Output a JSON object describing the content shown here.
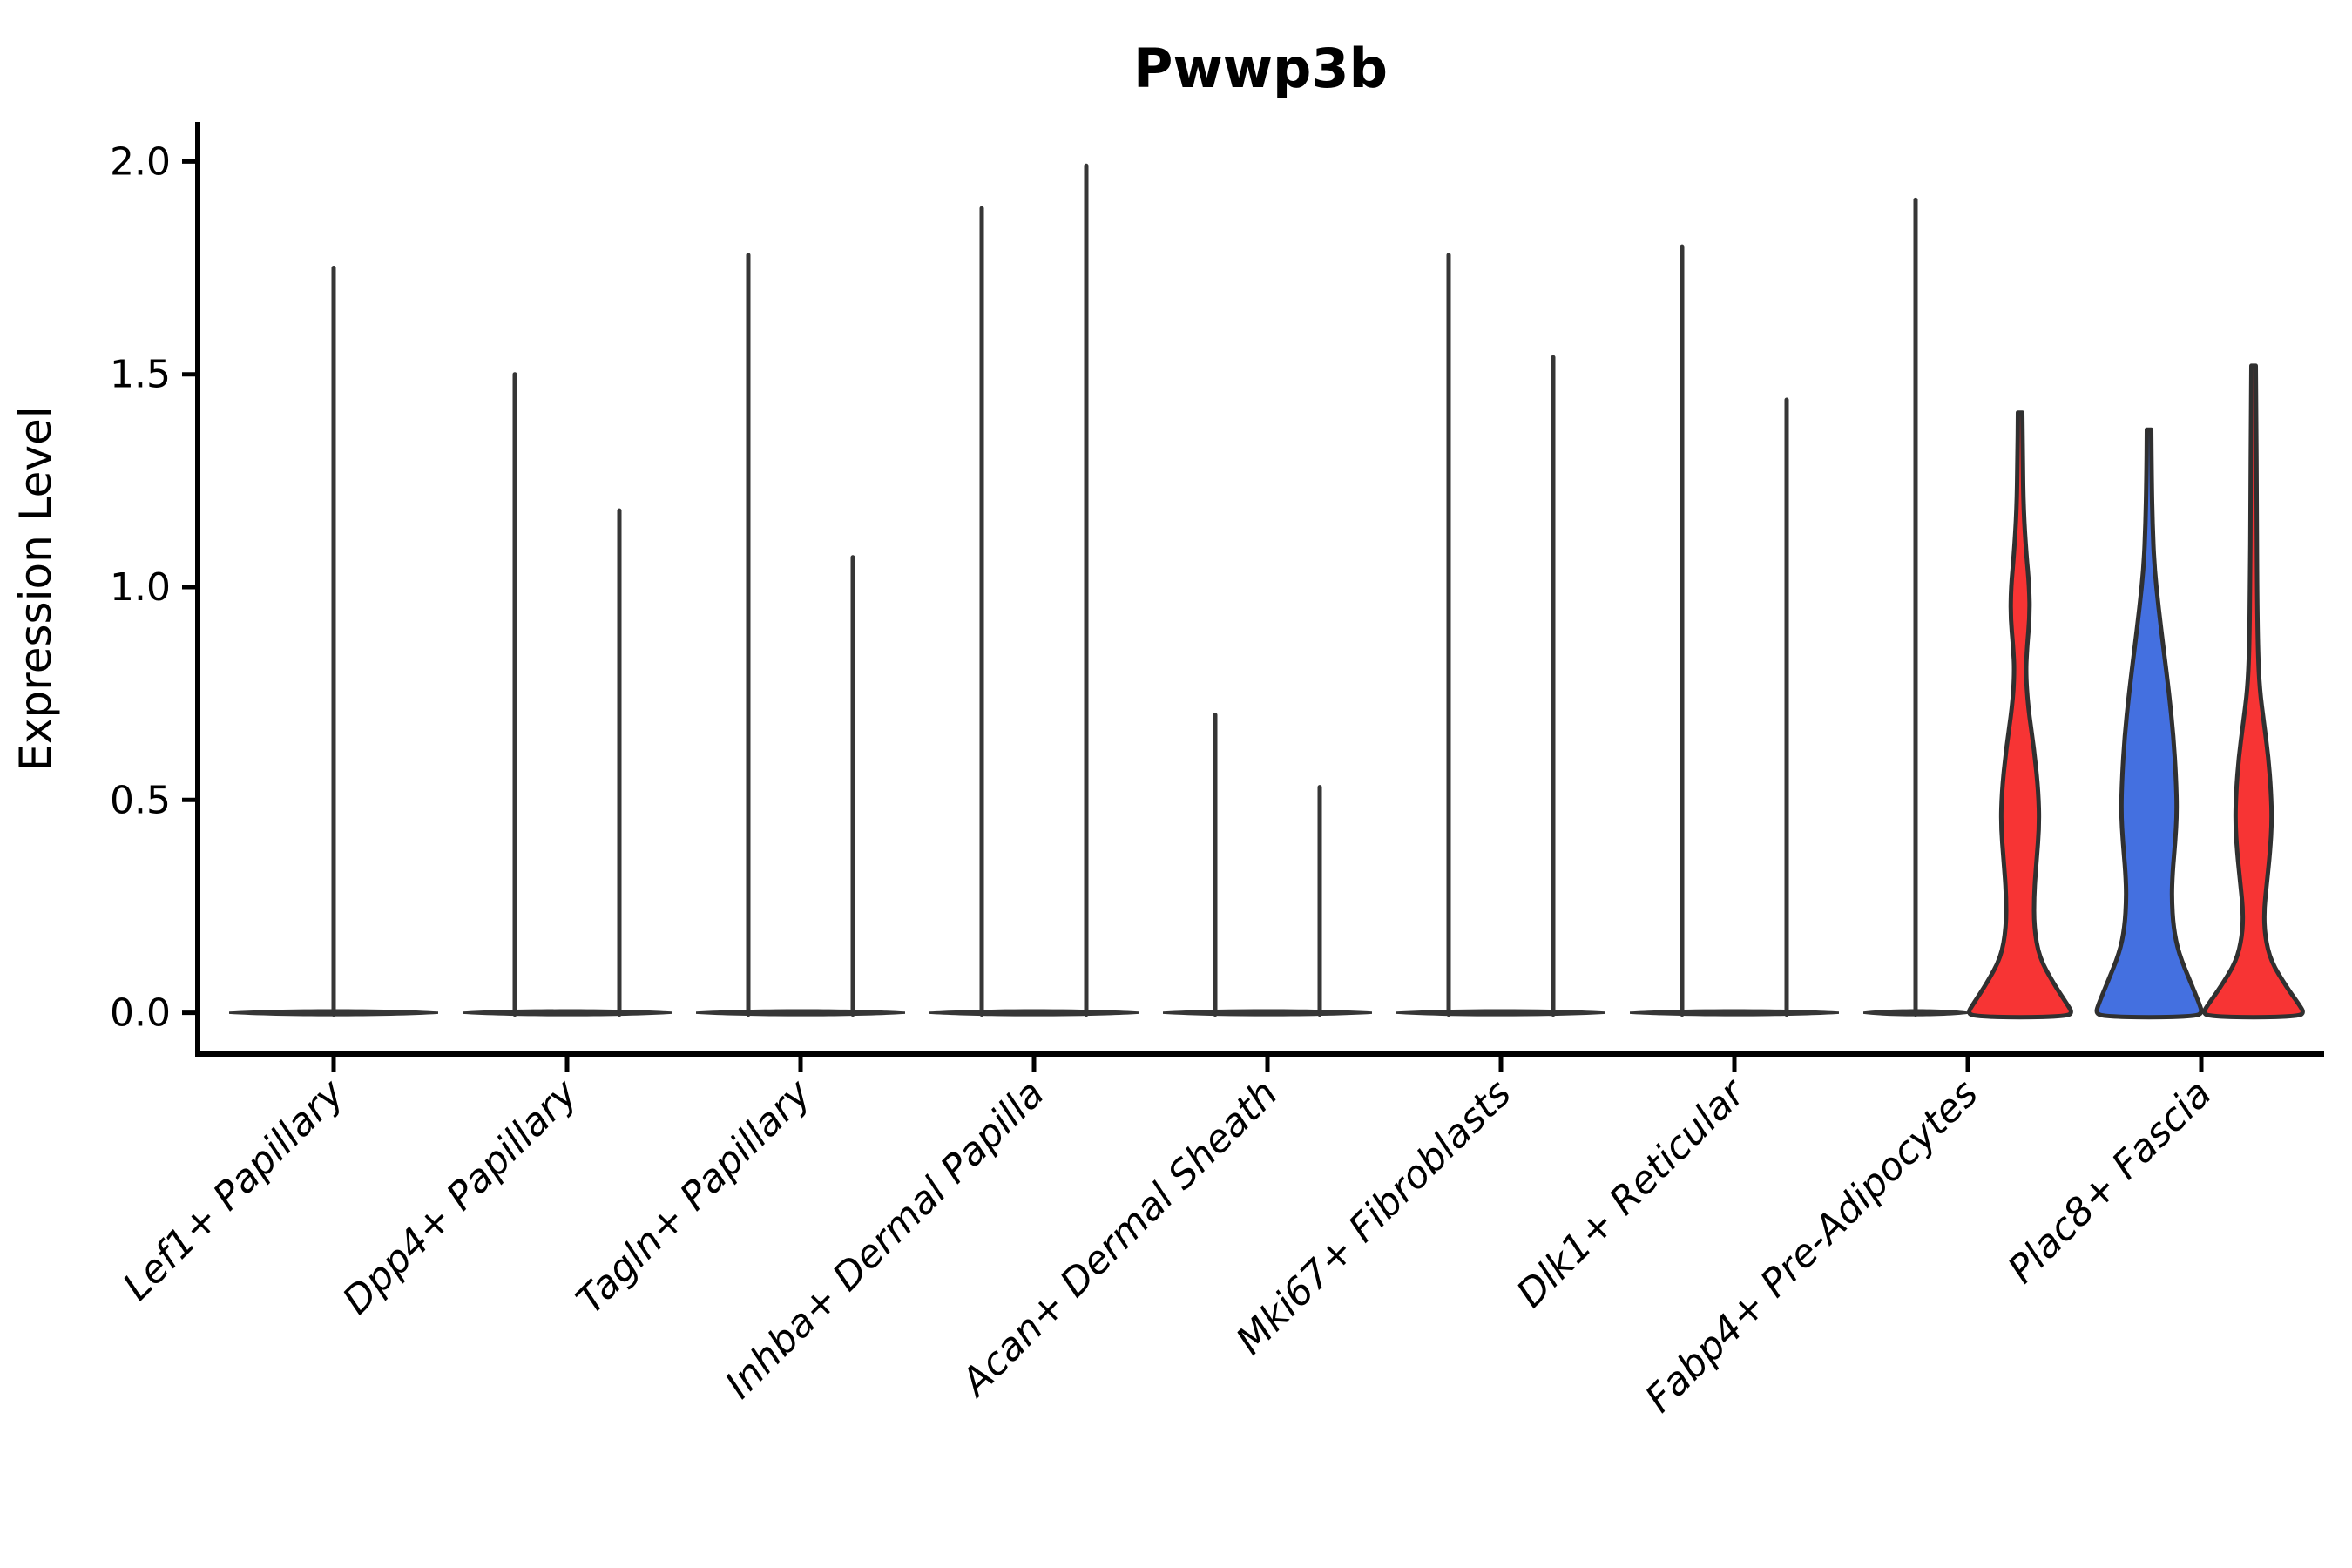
{
  "title": "Pwwp3b",
  "axes": {
    "ylabel": "Expression Level",
    "ytick_labels": [
      "0.0",
      "0.5",
      "1.0",
      "1.5",
      "2.0"
    ]
  },
  "colors": {
    "red": "#f73434",
    "blue": "#4470e0",
    "violin_outline": "#303030",
    "spike": "#363636",
    "axis": "#000000"
  },
  "chart_data": {
    "type": "violin",
    "title": "Pwwp3b",
    "xlabel": "",
    "ylabel": "Expression Level",
    "ylim": [
      -0.1,
      2.09
    ],
    "yticks": [
      0.0,
      0.5,
      1.0,
      1.5,
      2.0
    ],
    "grid": false,
    "legend": "none",
    "categories": [
      "Lef1+ Papillary",
      "Dpp4+ Papillary",
      "Tagln+ Papillary",
      "Inhba+ Dermal Papilla",
      "Acan+ Dermal Sheath",
      "Mki67+ Fibroblasts",
      "Dlk1+ Reticular",
      "Fabp4+ Pre-Adipocytes",
      "Plac8+ Fascia"
    ],
    "violins": [
      {
        "category": "Lef1+ Papillary",
        "position": "center",
        "style": "spike",
        "fill": "none",
        "max_expression": 1.75
      },
      {
        "category": "Dpp4+ Papillary",
        "position": "left",
        "style": "spike",
        "fill": "none",
        "max_expression": 1.5
      },
      {
        "category": "Dpp4+ Papillary",
        "position": "right",
        "style": "spike",
        "fill": "none",
        "max_expression": 1.18
      },
      {
        "category": "Tagln+ Papillary",
        "position": "left",
        "style": "spike",
        "fill": "none",
        "max_expression": 1.78
      },
      {
        "category": "Tagln+ Papillary",
        "position": "right",
        "style": "spike",
        "fill": "none",
        "max_expression": 1.07
      },
      {
        "category": "Inhba+ Dermal Papilla",
        "position": "left",
        "style": "spike",
        "fill": "none",
        "max_expression": 1.89
      },
      {
        "category": "Inhba+ Dermal Papilla",
        "position": "right",
        "style": "spike",
        "fill": "none",
        "max_expression": 1.99
      },
      {
        "category": "Acan+ Dermal Sheath",
        "position": "left",
        "style": "spike",
        "fill": "none",
        "max_expression": 0.7
      },
      {
        "category": "Acan+ Dermal Sheath",
        "position": "right",
        "style": "spike",
        "fill": "none",
        "max_expression": 0.53
      },
      {
        "category": "Mki67+ Fibroblasts",
        "position": "left",
        "style": "spike",
        "fill": "none",
        "max_expression": 1.78
      },
      {
        "category": "Mki67+ Fibroblasts",
        "position": "right",
        "style": "spike",
        "fill": "none",
        "max_expression": 1.54
      },
      {
        "category": "Dlk1+ Reticular",
        "position": "left",
        "style": "spike",
        "fill": "none",
        "max_expression": 1.8
      },
      {
        "category": "Dlk1+ Reticular",
        "position": "right",
        "style": "spike",
        "fill": "none",
        "max_expression": 1.44
      },
      {
        "category": "Fabp4+ Pre-Adipocytes",
        "position": "left",
        "style": "spike",
        "fill": "none",
        "max_expression": 1.91
      },
      {
        "category": "Fabp4+ Pre-Adipocytes",
        "position": "right",
        "style": "filled",
        "fill": "red",
        "max_expression": 1.41,
        "profile": [
          [
            1.41,
            2.5
          ],
          [
            1.3,
            3
          ],
          [
            1.18,
            4
          ],
          [
            1.08,
            7
          ],
          [
            1.0,
            10.5
          ],
          [
            0.93,
            11
          ],
          [
            0.86,
            8
          ],
          [
            0.8,
            6.5
          ],
          [
            0.72,
            9
          ],
          [
            0.62,
            16
          ],
          [
            0.52,
            21
          ],
          [
            0.44,
            22
          ],
          [
            0.36,
            19
          ],
          [
            0.28,
            16
          ],
          [
            0.2,
            16
          ],
          [
            0.13,
            22
          ],
          [
            0.07,
            38
          ],
          [
            0.02,
            54
          ],
          [
            0.0,
            60
          ]
        ]
      },
      {
        "category": "Plac8+ Fascia",
        "position": "left",
        "style": "filled",
        "fill": "blue",
        "max_expression": 1.37,
        "profile": [
          [
            1.37,
            2.5
          ],
          [
            1.25,
            3
          ],
          [
            1.15,
            4
          ],
          [
            1.05,
            6
          ],
          [
            0.95,
            11
          ],
          [
            0.85,
            17
          ],
          [
            0.75,
            23
          ],
          [
            0.65,
            28
          ],
          [
            0.55,
            31
          ],
          [
            0.47,
            32
          ],
          [
            0.4,
            30
          ],
          [
            0.33,
            27
          ],
          [
            0.27,
            26
          ],
          [
            0.2,
            28
          ],
          [
            0.14,
            34
          ],
          [
            0.07,
            48
          ],
          [
            0.02,
            58
          ],
          [
            0.0,
            61
          ]
        ]
      },
      {
        "category": "Plac8+ Fascia",
        "position": "right",
        "style": "filled",
        "fill": "red",
        "max_expression": 1.52,
        "profile": [
          [
            1.52,
            2.5
          ],
          [
            1.4,
            3
          ],
          [
            1.2,
            3.5
          ],
          [
            1.0,
            4
          ],
          [
            0.85,
            5
          ],
          [
            0.76,
            7
          ],
          [
            0.68,
            12
          ],
          [
            0.6,
            17
          ],
          [
            0.52,
            20
          ],
          [
            0.45,
            21
          ],
          [
            0.38,
            19
          ],
          [
            0.3,
            15
          ],
          [
            0.24,
            12
          ],
          [
            0.18,
            13
          ],
          [
            0.12,
            20
          ],
          [
            0.06,
            38
          ],
          [
            0.02,
            52
          ],
          [
            0.0,
            58
          ]
        ]
      }
    ]
  }
}
